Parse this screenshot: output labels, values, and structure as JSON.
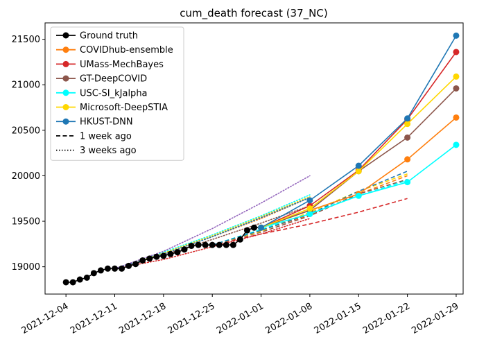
{
  "chart_data": {
    "type": "line",
    "title": "cum_death forecast (37_NC)",
    "xlabel": "",
    "ylabel": "",
    "x_ticks": [
      "2021-12-04",
      "2021-12-11",
      "2021-12-18",
      "2021-12-25",
      "2022-01-01",
      "2022-01-08",
      "2022-01-15",
      "2022-01-22",
      "2022-01-29"
    ],
    "y_ticks": [
      19000,
      19500,
      20000,
      20500,
      21000,
      21500
    ],
    "xlim": [
      "2021-12-01",
      "2022-01-30"
    ],
    "ylim": [
      18700,
      21680
    ],
    "grid": false,
    "legend_position": "top-left",
    "legend": [
      "Ground truth",
      "COVIDhub-ensemble",
      "UMass-MechBayes",
      "GT-DeepCOVID",
      "USC-SI_kJalpha",
      "Microsoft-DeepSTIA",
      "HKUST-DNN",
      "1 week ago",
      "3 weeks ago"
    ],
    "series": [
      {
        "name": "Ground truth",
        "color": "#000000",
        "style": "solid",
        "marker": true,
        "x": [
          "2021-12-04",
          "2021-12-05",
          "2021-12-06",
          "2021-12-07",
          "2021-12-08",
          "2021-12-09",
          "2021-12-10",
          "2021-12-11",
          "2021-12-12",
          "2021-12-13",
          "2021-12-14",
          "2021-12-15",
          "2021-12-16",
          "2021-12-17",
          "2021-12-18",
          "2021-12-19",
          "2021-12-20",
          "2021-12-21",
          "2021-12-22",
          "2021-12-23",
          "2021-12-24",
          "2021-12-25",
          "2021-12-26",
          "2021-12-27",
          "2021-12-28",
          "2021-12-29",
          "2021-12-30",
          "2021-12-31",
          "2022-01-01"
        ],
        "y": [
          18830,
          18830,
          18860,
          18880,
          18930,
          18960,
          18980,
          18980,
          18980,
          19010,
          19030,
          19070,
          19090,
          19110,
          19120,
          19140,
          19160,
          19190,
          19230,
          19240,
          19240,
          19240,
          19240,
          19240,
          19240,
          19300,
          19400,
          19430,
          19430
        ]
      },
      {
        "name": "COVIDhub-ensemble",
        "color": "#ff7f0e",
        "style": "solid",
        "marker": true,
        "x": [
          "2022-01-01",
          "2022-01-08",
          "2022-01-15",
          "2022-01-22",
          "2022-01-29"
        ],
        "y": [
          19430,
          19620,
          19800,
          20180,
          20640
        ]
      },
      {
        "name": "UMass-MechBayes",
        "color": "#d62728",
        "style": "solid",
        "marker": true,
        "x": [
          "2022-01-01",
          "2022-01-08",
          "2022-01-15",
          "2022-01-22",
          "2022-01-29"
        ],
        "y": [
          19430,
          19670,
          20060,
          20620,
          21360
        ]
      },
      {
        "name": "GT-DeepCOVID",
        "color": "#8c564b",
        "style": "solid",
        "marker": true,
        "x": [
          "2022-01-01",
          "2022-01-08",
          "2022-01-15",
          "2022-01-22",
          "2022-01-29"
        ],
        "y": [
          19430,
          19620,
          20050,
          20420,
          20960
        ]
      },
      {
        "name": "USC-SI_kJalpha",
        "color": "#00ffff",
        "style": "solid",
        "marker": true,
        "x": [
          "2022-01-01",
          "2022-01-08",
          "2022-01-15",
          "2022-01-22",
          "2022-01-29"
        ],
        "y": [
          19430,
          19580,
          19780,
          19930,
          20340
        ]
      },
      {
        "name": "Microsoft-DeepSTIA",
        "color": "#ffd700",
        "style": "solid",
        "marker": true,
        "x": [
          "2022-01-01",
          "2022-01-08",
          "2022-01-15",
          "2022-01-22",
          "2022-01-29"
        ],
        "y": [
          19430,
          19640,
          20050,
          20570,
          21090
        ]
      },
      {
        "name": "HKUST-DNN",
        "color": "#1f77b4",
        "style": "solid",
        "marker": true,
        "x": [
          "2022-01-01",
          "2022-01-08",
          "2022-01-15",
          "2022-01-22",
          "2022-01-29"
        ],
        "y": [
          19430,
          19730,
          20110,
          20630,
          21540
        ]
      },
      {
        "color": "#ff7f0e",
        "style": "dashed",
        "marker": false,
        "x": [
          "2021-12-25",
          "2022-01-01",
          "2022-01-08",
          "2022-01-15",
          "2022-01-22"
        ],
        "y": [
          19240,
          19400,
          19570,
          19800,
          20000
        ]
      },
      {
        "color": "#d62728",
        "style": "dashed",
        "marker": false,
        "x": [
          "2021-12-25",
          "2022-01-01",
          "2022-01-08",
          "2022-01-15",
          "2022-01-22"
        ],
        "y": [
          19240,
          19360,
          19470,
          19600,
          19750
        ]
      },
      {
        "color": "#8c564b",
        "style": "dashed",
        "marker": false,
        "x": [
          "2021-12-25",
          "2022-01-01",
          "2022-01-08",
          "2022-01-15",
          "2022-01-22"
        ],
        "y": [
          19240,
          19380,
          19560,
          19800,
          19960
        ]
      },
      {
        "color": "#00ffff",
        "style": "dashed",
        "marker": false,
        "x": [
          "2021-12-25",
          "2022-01-01",
          "2022-01-08",
          "2022-01-15",
          "2022-01-22"
        ],
        "y": [
          19240,
          19410,
          19590,
          19780,
          19950
        ]
      },
      {
        "color": "#ffd700",
        "style": "dashed",
        "marker": false,
        "x": [
          "2021-12-25",
          "2022-01-01",
          "2022-01-08",
          "2022-01-15",
          "2022-01-22"
        ],
        "y": [
          19240,
          19390,
          19600,
          19830,
          20020
        ]
      },
      {
        "color": "#1f77b4",
        "style": "dashed",
        "marker": false,
        "x": [
          "2021-12-25",
          "2022-01-01",
          "2022-01-08",
          "2022-01-15",
          "2022-01-22"
        ],
        "y": [
          19240,
          19400,
          19580,
          19830,
          20050
        ]
      },
      {
        "color": "#ff7f0e",
        "style": "dotted",
        "marker": false,
        "x": [
          "2021-12-11",
          "2021-12-18",
          "2021-12-25",
          "2022-01-01",
          "2022-01-08"
        ],
        "y": [
          18980,
          19140,
          19330,
          19530,
          19760
        ]
      },
      {
        "color": "#d62728",
        "style": "dotted",
        "marker": false,
        "x": [
          "2021-12-11",
          "2021-12-18",
          "2021-12-25",
          "2022-01-01",
          "2022-01-08"
        ],
        "y": [
          18980,
          19080,
          19220,
          19360,
          19530
        ]
      },
      {
        "color": "#8c564b",
        "style": "dotted",
        "marker": false,
        "x": [
          "2021-12-11",
          "2021-12-18",
          "2021-12-25",
          "2022-01-01",
          "2022-01-08"
        ],
        "y": [
          18980,
          19130,
          19300,
          19480,
          19670
        ]
      },
      {
        "color": "#00ffff",
        "style": "dotted",
        "marker": false,
        "x": [
          "2021-12-11",
          "2021-12-18",
          "2021-12-25",
          "2022-01-01",
          "2022-01-08"
        ],
        "y": [
          18980,
          19160,
          19350,
          19560,
          19790
        ]
      },
      {
        "color": "#ffd700",
        "style": "dotted",
        "marker": false,
        "x": [
          "2021-12-11",
          "2021-12-18",
          "2021-12-25",
          "2022-01-01",
          "2022-01-08"
        ],
        "y": [
          18980,
          19150,
          19340,
          19550,
          19770
        ]
      },
      {
        "color": "#1f77b4",
        "style": "dotted",
        "marker": false,
        "x": [
          "2021-12-11",
          "2021-12-18",
          "2021-12-25",
          "2022-01-01",
          "2022-01-08"
        ],
        "y": [
          18980,
          19140,
          19330,
          19540,
          19760
        ]
      },
      {
        "color": "#9467bd",
        "style": "dotted",
        "marker": false,
        "x": [
          "2021-12-11",
          "2021-12-18",
          "2021-12-25",
          "2022-01-01",
          "2022-01-08"
        ],
        "y": [
          18980,
          19170,
          19420,
          19700,
          20000
        ]
      }
    ]
  }
}
